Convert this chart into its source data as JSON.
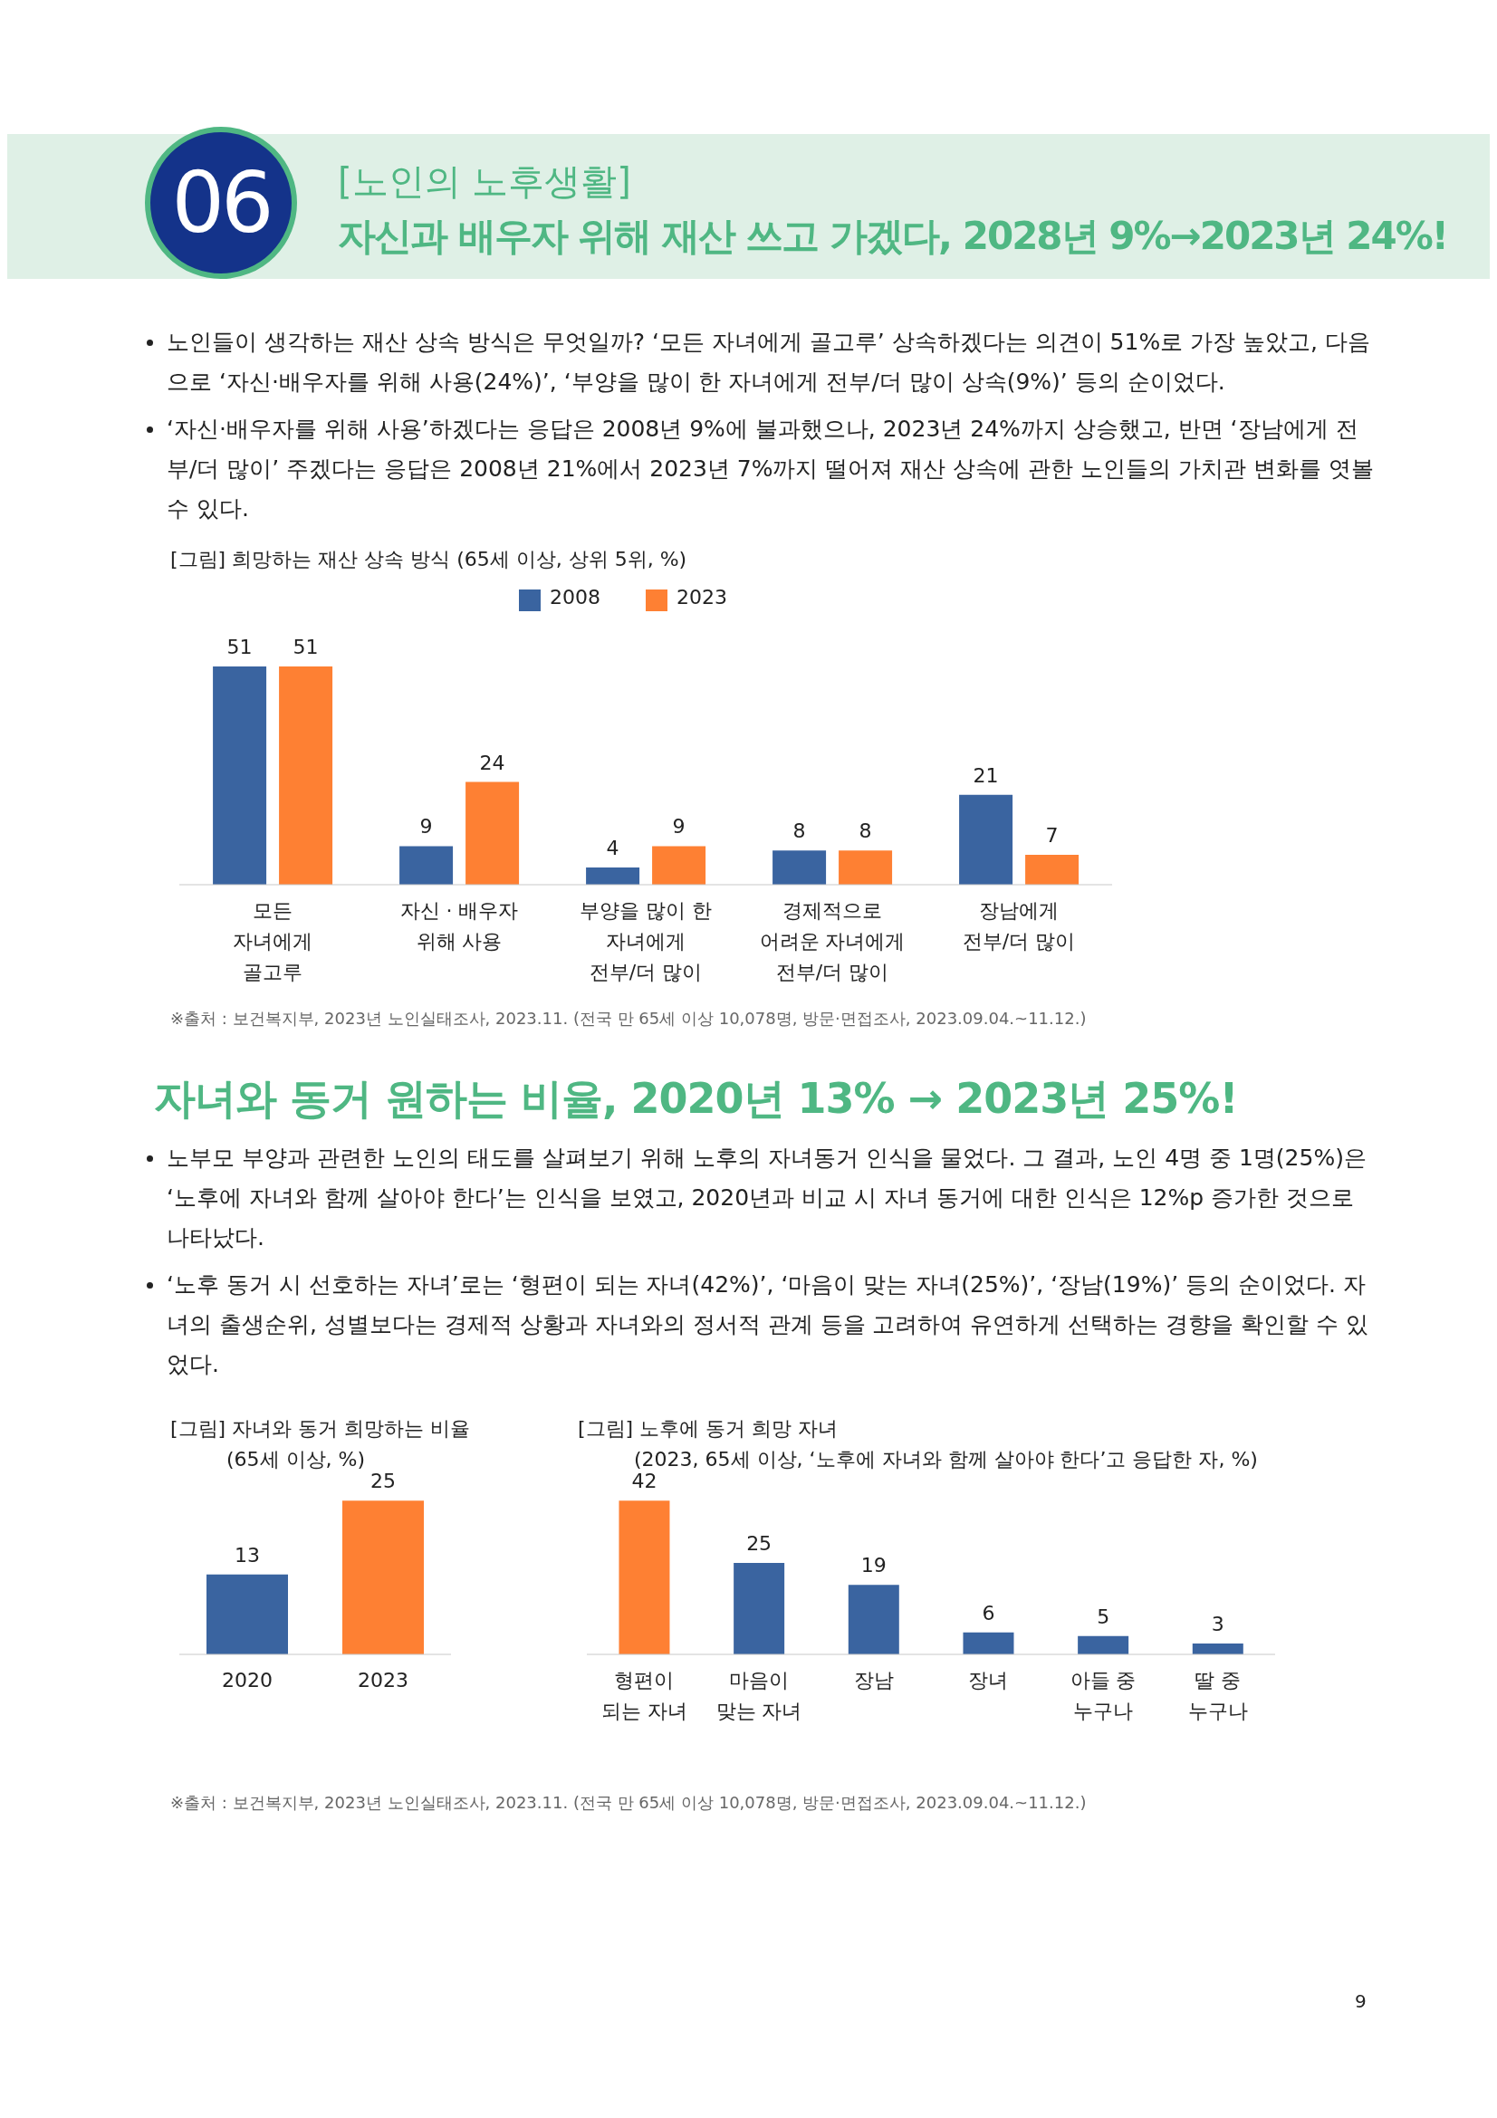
{
  "chart_data": [
    {
      "type": "bar",
      "title": "[그림] 희망하는 재산 상속 방식 (65세 이상, 상위 5위, %)",
      "categories": [
        "모든\n자녀에게\n골고루",
        "자신 · 배우자\n위해 사용",
        "부양을 많이 한\n자녀에게\n전부/더 많이",
        "경제적으로\n어려운 자녀에게\n전부/더 많이",
        "장남에게\n전부/더 많이"
      ],
      "series": [
        {
          "name": "2008",
          "color": "#3a64a0",
          "values": [
            51,
            9,
            4,
            8,
            21
          ]
        },
        {
          "name": "2023",
          "color": "#fe8033",
          "values": [
            51,
            24,
            9,
            8,
            7
          ]
        }
      ],
      "data_labels": true,
      "legend": "top",
      "grid": false,
      "annotations": [
        "06",
        "[노인의 노후생활]",
        "자신과 배우자 위해 재산 쓰고 가겠다, 2028년 9%→2023년 24%!",
        "노인들이 생각하는 재산 상속 방식은 무엇일까? ‘모든 자녀에게 골고루’ 상속하겠다는 의견이 51%로 가장 높았고, 다음으로 ‘자신·배우자를 위해 사용(24%)’, ‘부양을 많이 한 자녀에게 전부/더 많이 상속(9%)’ 등의 순이었다.",
        "‘자신·배우자를 위해 사용’하겠다는 응답은 2008년 9%에 불과했으나, 2023년 24%까지 상승했고, 반면 ‘장남에게 전부/더 많이’ 주겠다는 응답은 2008년 21%에서 2023년 7%까지 떨어져 재산 상속에 관한 노인들의 가치관 변화를 엿볼 수 있다.",
        "※출처 : 보건복지부, 2023년 노인실태조사, 2023.11. (전국 만 65세 이상 10,078명, 방문·면접조사, 2023.09.04.~11.12.)"
      ]
    },
    {
      "type": "bar",
      "title": "[그림] 자녀와 동거 희망하는 비율",
      "subtitle": "(65세 이상, %)",
      "categories": [
        "2020",
        "2023"
      ],
      "values": [
        13,
        25
      ],
      "colors": [
        "#3a64a0",
        "#fe8033"
      ],
      "data_labels": true,
      "grid": false,
      "annotations": [
        "자녀와 동거 원하는 비율, 2020년 13% → 2023년 25%!",
        "노부모 부양과 관련한 노인의 태도를 살펴보기 위해 노후의 자녀동거 인식을 물었다. 그 결과, 노인 4명 중 1명(25%)은 ‘노후에 자녀와 함께 살아야 한다’는 인식을 보였고, 2020년과 비교 시 자녀 동거에 대한 인식은 12%p 증가한 것으로 나타났다.",
        "‘노후 동거 시 선호하는 자녀’로는 ‘형편이 되는 자녀(42%)’, ‘마음이 맞는 자녀(25%)’, ‘장남(19%)’ 등의 순이었다. 자녀의 출생순위, 성별보다는 경제적 상황과 자녀와의 정서적 관계 등을 고려하여 유연하게 선택하는 경향을 확인할 수 있었다."
      ]
    },
    {
      "type": "bar",
      "title": "[그림] 노후에 동거 희망 자녀",
      "subtitle": "(2023, 65세 이상, ‘노후에 자녀와 함께 살아야 한다’고 응답한 자, %)",
      "categories": [
        "형편이\n되는 자녀",
        "마음이\n맞는 자녀",
        "장남",
        "장녀",
        "아들 중\n누구나",
        "딸 중\n누구나"
      ],
      "values": [
        42,
        25,
        19,
        6,
        5,
        3
      ],
      "colors": [
        "#fe8033",
        "#3a64a0",
        "#3a64a0",
        "#3a64a0",
        "#3a64a0",
        "#3a64a0"
      ],
      "data_labels": true,
      "grid": false,
      "annotations": [
        "※출처 : 보건복지부, 2023년 노인실태조사, 2023.11. (전국 만 65세 이상 10,078명, 방문·면접조사, 2023.09.04.~11.12.)",
        "9"
      ]
    }
  ]
}
